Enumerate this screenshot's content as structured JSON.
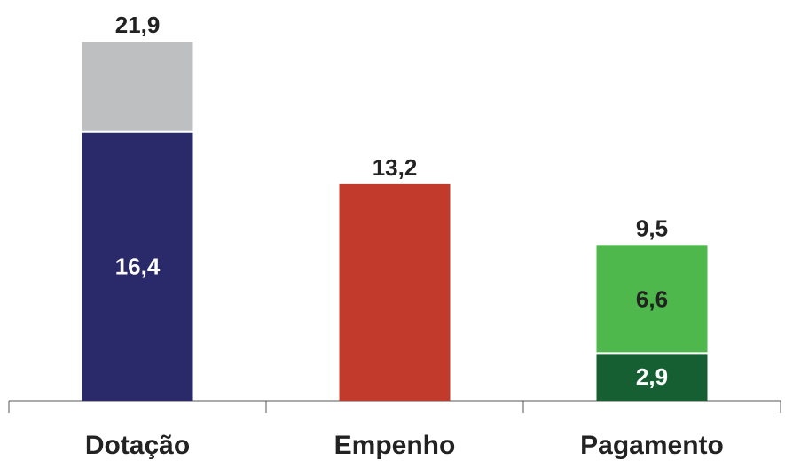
{
  "chart_data": {
    "type": "bar",
    "stacked": true,
    "categories": [
      "Dotação",
      "Empenho",
      "Pagamento"
    ],
    "totals": [
      21.9,
      13.2,
      9.5
    ],
    "total_labels": [
      "21,9",
      "13,2",
      "9,5"
    ],
    "bars": [
      {
        "category": "Dotação",
        "segments": [
          {
            "value": 16.4,
            "label": "16,4",
            "color": "#2a2a6b",
            "label_color": "#ffffff"
          },
          {
            "value": 5.5,
            "label": "",
            "color": "#bdbfc1",
            "label_color": "#222222"
          }
        ]
      },
      {
        "category": "Empenho",
        "segments": [
          {
            "value": 13.2,
            "label": "",
            "color": "#c23a2b",
            "label_color": "#ffffff"
          }
        ]
      },
      {
        "category": "Pagamento",
        "segments": [
          {
            "value": 2.9,
            "label": "2,9",
            "color": "#155f32",
            "label_color": "#ffffff"
          },
          {
            "value": 6.6,
            "label": "6,6",
            "color": "#4fb84c",
            "label_color": "#222222"
          }
        ]
      }
    ],
    "ylim": [
      0,
      21.9
    ],
    "grid": false,
    "legend": "none"
  }
}
